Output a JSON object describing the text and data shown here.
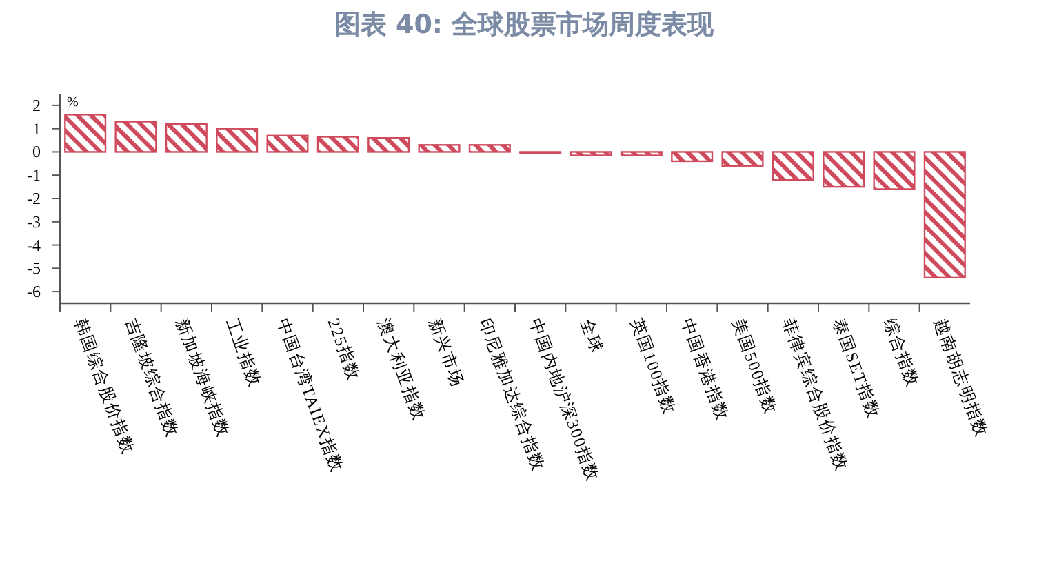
{
  "chart_data": {
    "type": "bar",
    "title": "图表 40: 全球股票市场周度表现",
    "ylabel": "%",
    "categories": [
      "韩国综合股价指数",
      "吉隆坡综合指数",
      "新加坡海峡指数",
      "工业指数",
      "中国台湾TAIEX指数",
      "225指数",
      "澳大利亚指数",
      "新兴市场",
      "印尼雅加达综合指数",
      "中国内地沪深300指数",
      "全球",
      "英国100指数",
      "中国香港指数",
      "美国500指数",
      "菲律宾综合股价指数",
      "泰国SET指数",
      "综合指数",
      "越南胡志明指数"
    ],
    "values": [
      1.6,
      1.3,
      1.2,
      1.0,
      0.7,
      0.65,
      0.6,
      0.3,
      0.3,
      -0.05,
      -0.15,
      -0.15,
      -0.4,
      -0.6,
      -1.2,
      -1.5,
      -1.6,
      -5.4
    ],
    "color": "#cf4a5c",
    "ylim": [
      -6.5,
      2.5
    ],
    "yticks": [
      2,
      1,
      0,
      -1,
      -2,
      -3,
      -4,
      -5,
      -6
    ]
  }
}
